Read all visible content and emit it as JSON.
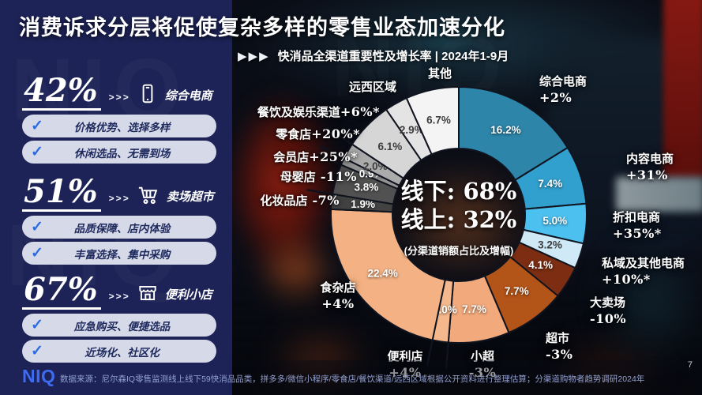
{
  "slide": {
    "title": "消费诉求分层将促使复杂多样的零售业态加速分化",
    "page_number": "7"
  },
  "subtitle": {
    "chevrons": "▶▶▶",
    "text": "快消品全渠道重要性及增长率 | 2024年1-9月"
  },
  "icons": {
    "check": "✓",
    "arrows": ">>>"
  },
  "colors": {
    "navy": "#1d2357",
    "accent_blue": "#2b6be4",
    "logo_blue": "#3f6bf0"
  },
  "sidebar": {
    "blocks": [
      {
        "percent": "42%",
        "arrows": ">>>",
        "icon": "phone-icon",
        "channel": "综合电商",
        "features": [
          "价格优势、选择多样",
          "休闲选品、无需到场"
        ]
      },
      {
        "percent": "51%",
        "arrows": ">>>",
        "icon": "cart-icon",
        "channel": "卖场超市",
        "features": [
          "品质保障、店内体验",
          "丰富选择、集中采购"
        ]
      },
      {
        "percent": "67%",
        "arrows": ">>>",
        "icon": "store-icon",
        "channel": "便利小店",
        "features": [
          "应急购买、便捷选品",
          "近场化、社区化"
        ]
      }
    ]
  },
  "chart_data": {
    "type": "pie",
    "subtype": "donut",
    "title": "快消品全渠道重要性及增长率 | 2024年1-9月",
    "legend_position": "around",
    "center_labels": {
      "offline": "线下: 68%",
      "online": "线上: 32%",
      "caption": "(分渠道销额占比及增幅)"
    },
    "segments": [
      {
        "label": "综合电商",
        "growth": "+2%",
        "value": 16.2,
        "color": "#2d85a9",
        "label_color": "#ffffff",
        "group": "线上"
      },
      {
        "label": "内容电商",
        "growth": "+31%",
        "value": 7.4,
        "color": "#31a0ce",
        "label_color": "#ffffff",
        "group": "线上"
      },
      {
        "label": "折扣电商",
        "growth": "+35%*",
        "value": 5.0,
        "color": "#4cc1ef",
        "label_color": "#ffffff",
        "group": "线上"
      },
      {
        "label": "私域及其他电商",
        "growth": "+10%*",
        "value": 3.2,
        "color": "#cfe9f6",
        "label_color": "#3d3d3d",
        "group": "线上"
      },
      {
        "label": "大卖场",
        "growth": "-10%",
        "value": 4.1,
        "color": "#7c2d12",
        "label_color": "#ffffff",
        "group": "线下"
      },
      {
        "label": "超市",
        "growth": "-3%",
        "value": 7.7,
        "color": "#b35419",
        "label_color": "#ffffff",
        "group": "线下"
      },
      {
        "label": "小超",
        "growth": "-3%",
        "value": 7.7,
        "color": "#f2aa7c",
        "label_color": "#ffffff",
        "group": "线下"
      },
      {
        "label": "便利店",
        "growth": "+4%",
        "value": 2.0,
        "color": "#f5b88c",
        "label_color": "#ffffff",
        "group": "线下"
      },
      {
        "label": "食杂店",
        "growth": "+4%",
        "value": 22.4,
        "color": "#f4b284",
        "label_color": "#ffffff",
        "group": "线下"
      },
      {
        "label": "化妆品店",
        "growth": "-7%",
        "value": 1.9,
        "color": "#424242",
        "label_color": "#ffffff",
        "group": "线下"
      },
      {
        "label": "母婴店",
        "growth": "-11%",
        "value": 3.8,
        "color": "#515151",
        "label_color": "#ffffff",
        "group": "线下"
      },
      {
        "label": "会员店",
        "growth": "+25%*",
        "value": 0.9,
        "color": "#949494",
        "label_color": "#ffffff",
        "group": "线下"
      },
      {
        "label": "零食店",
        "growth": "+20%*",
        "value": 2.0,
        "color": "#ababab",
        "label_color": "#3d3d3d",
        "group": "线下"
      },
      {
        "label": "餐饮及娱乐渠道",
        "growth": "+6%*",
        "value": 6.1,
        "color": "#d6d6d6",
        "label_color": "#3d3d3d",
        "group": "线下"
      },
      {
        "label": "远西区域",
        "growth": "",
        "value": 2.9,
        "color": "#e4e4e4",
        "label_color": "#3d3d3d",
        "group": "线下"
      },
      {
        "label": "其他",
        "growth": "",
        "value": 6.7,
        "color": "#f4f4f4",
        "label_color": "#3d3d3d",
        "group": "线下"
      }
    ]
  },
  "footer": {
    "logo": "NIQ",
    "source": "数据来源：尼尔森IQ零售监测线上线下59快消品品类，拼多多/微信小程序/零食店/餐饮渠道/远西区域根据公开资料进行整理估算；分渠道购物者趋势调研2024年",
    "page_number": "7"
  }
}
